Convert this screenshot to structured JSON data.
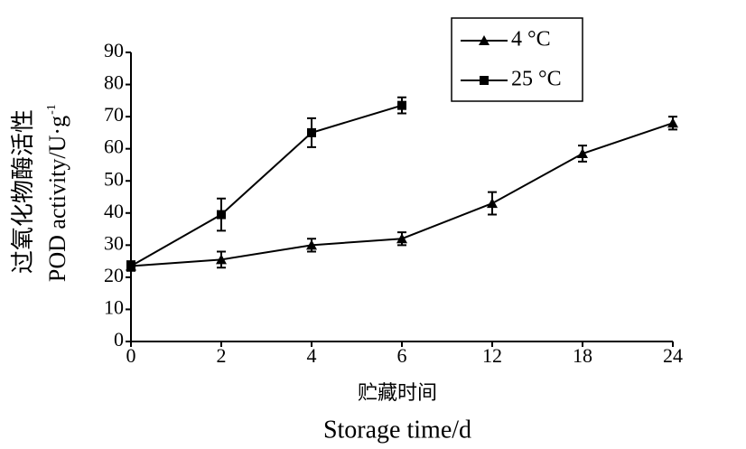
{
  "chart_data": {
    "type": "line",
    "ylabel_cn": "过氧化物酶活性",
    "ylabel_en": "POD activity/U·g",
    "ylabel_sup": "-1",
    "xlabel_cn": "贮藏时间",
    "xlabel_en": "Storage time/d",
    "categories": [
      "0",
      "2",
      "4",
      "6",
      "12",
      "18",
      "24"
    ],
    "ylim": [
      0,
      90
    ],
    "yticks": [
      0,
      10,
      20,
      30,
      40,
      50,
      60,
      70,
      80,
      90
    ],
    "series": [
      {
        "name": "4 °C",
        "color": "#000000",
        "marker": "triangle",
        "values": [
          23.5,
          25.5,
          30,
          32,
          43,
          58.5,
          68
        ],
        "errors": [
          1.5,
          2.5,
          2,
          2,
          3.5,
          2.5,
          2
        ]
      },
      {
        "name": "25 °C",
        "color": "#000000",
        "marker": "square",
        "values": [
          23.5,
          39.5,
          65,
          73.5,
          null,
          null,
          null
        ],
        "errors": [
          1,
          5,
          4.5,
          2.5,
          null,
          null,
          null
        ]
      }
    ]
  }
}
